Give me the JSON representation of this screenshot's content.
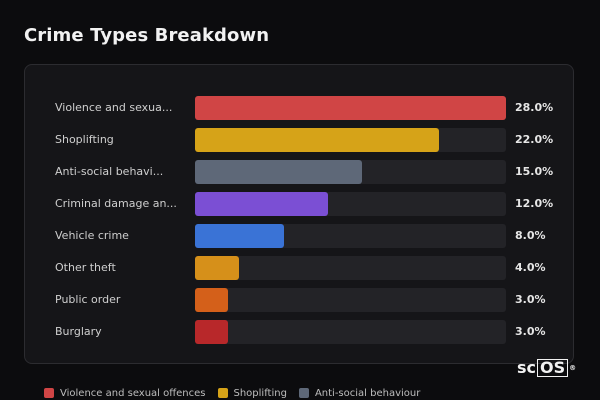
{
  "title": "Crime Types Breakdown",
  "logo": {
    "prefix": "sc",
    "boxed": "OS",
    "mark": "®"
  },
  "chart_data": {
    "type": "bar",
    "orientation": "horizontal",
    "value_suffix": "%",
    "xlim": [
      0,
      28
    ],
    "categories": [
      "Violence and sexua...",
      "Shoplifting",
      "Anti-social behavi...",
      "Criminal damage an...",
      "Vehicle crime",
      "Other theft",
      "Public order",
      "Burglary"
    ],
    "values": [
      28.0,
      22.0,
      15.0,
      12.0,
      8.0,
      4.0,
      3.0,
      3.0
    ],
    "value_labels": [
      "28.0%",
      "22.0%",
      "15.0%",
      "12.0%",
      "8.0%",
      "4.0%",
      "3.0%",
      "3.0%"
    ],
    "colors": [
      "#d04545",
      "#d6a318",
      "#5e6878",
      "#7b4fd4",
      "#3a73d6",
      "#d6901a",
      "#d4601a",
      "#b8282a"
    ],
    "legend_position": "bottom-left",
    "legend": [
      {
        "name": "Violence and sexual offences",
        "color": "#d04545"
      },
      {
        "name": "Shoplifting",
        "color": "#d6a318"
      },
      {
        "name": "Anti-social behaviour",
        "color": "#5e6878"
      }
    ]
  }
}
